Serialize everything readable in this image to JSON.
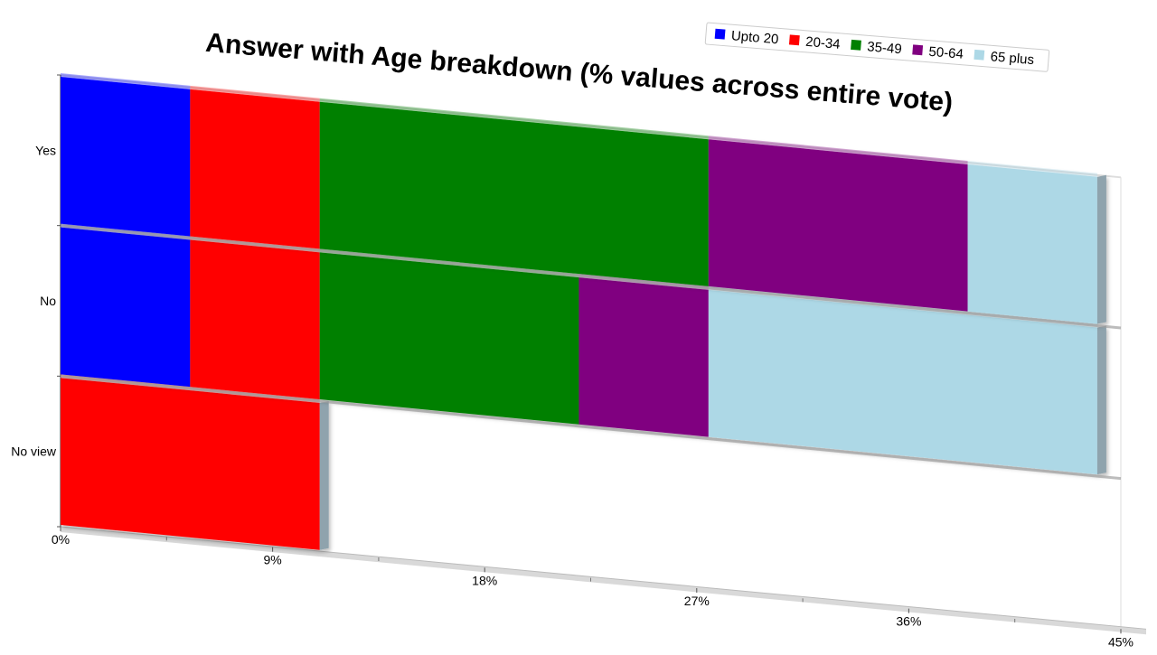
{
  "chart_data": {
    "type": "bar",
    "orientation": "horizontal",
    "stacked": true,
    "title": "Answer with Age breakdown (% values across entire vote)",
    "categories": [
      "Yes",
      "No",
      "No view"
    ],
    "x_ticks": [
      "0%",
      "9%",
      "18%",
      "27%",
      "36%",
      "45%"
    ],
    "xlim": [
      0,
      45
    ],
    "legend_position": "top-right",
    "series": [
      {
        "name": "Upto 20",
        "color": "#0000ff",
        "values": [
          5.5,
          5.5,
          0
        ]
      },
      {
        "name": "20-34",
        "color": "#ff0000",
        "values": [
          5.5,
          5.5,
          11
        ]
      },
      {
        "name": "35-49",
        "color": "#008000",
        "values": [
          16.5,
          11,
          0
        ]
      },
      {
        "name": "50-64",
        "color": "#800080",
        "values": [
          11,
          5.5,
          0
        ]
      },
      {
        "name": "65 plus",
        "color": "#add8e6",
        "values": [
          5.5,
          16.5,
          0
        ]
      }
    ]
  }
}
